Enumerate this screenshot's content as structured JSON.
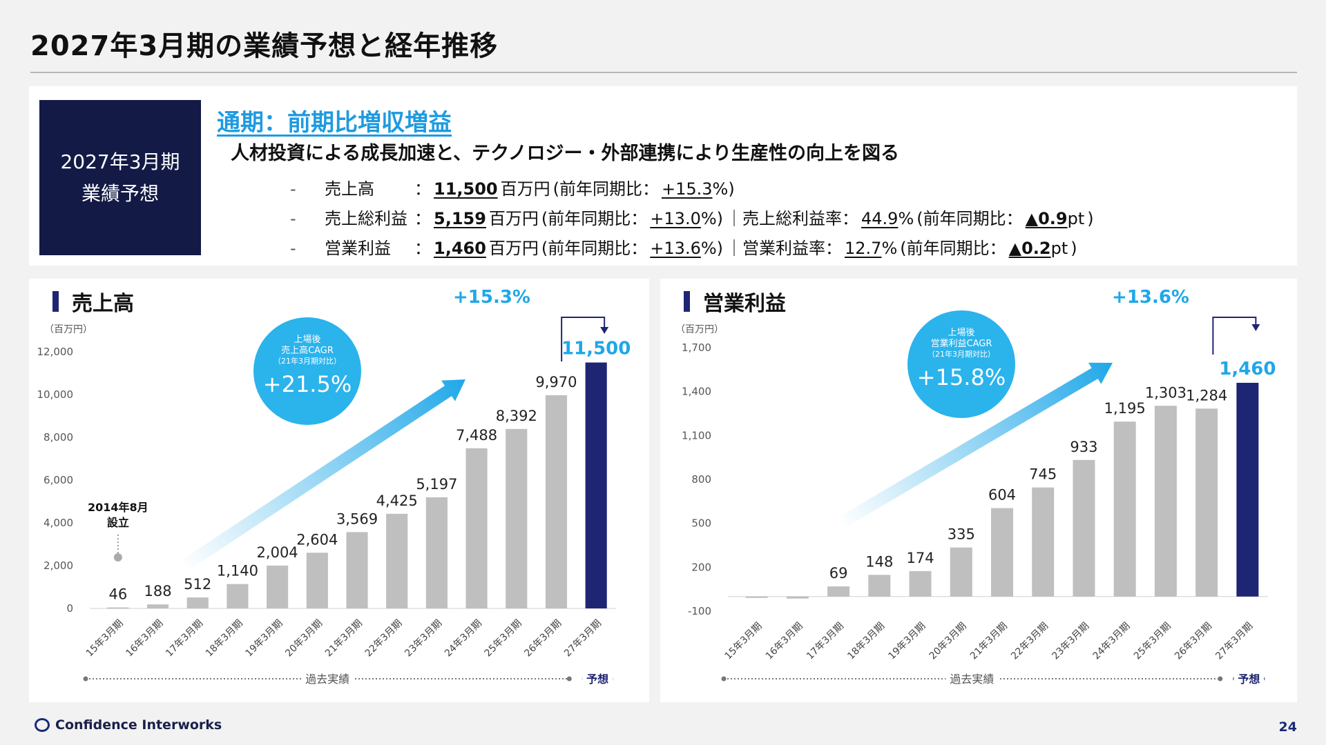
{
  "page": {
    "title": "2027年3月期の業績予想と経年推移",
    "page_number": "24",
    "company": "Confidence Interworks"
  },
  "summary": {
    "badge_line1": "2027年3月期",
    "badge_line2": "業績予想",
    "headline": "通期：前期比増収増益",
    "subline": "人材投資による成長加速と、テクノロジー・外部連携により生産性の向上を図る",
    "rows": [
      {
        "dash": "-",
        "label": "売上高",
        "colon": "：",
        "value": "11,500",
        "unit": "百万円",
        "p1": "(前年同期比：",
        "yoy": "+15.3",
        "p2": "%)"
      },
      {
        "dash": "-",
        "label": "売上総利益",
        "colon": "：",
        "value": "5,159",
        "unit": "百万円",
        "p1": "(前年同期比：",
        "yoy": "+13.0",
        "p2": "%)",
        "sep": "｜売上総利益率：",
        "rate": "44.9",
        "rate_unit": "%",
        "p3": "(前年同期比：",
        "delta": "▲0.9",
        "delta_unit": "pt",
        "p4": ")"
      },
      {
        "dash": "-",
        "label": "営業利益",
        "colon": "：",
        "value": "1,460",
        "unit": "百万円",
        "p1": "(前年同期比：",
        "yoy": "+13.6",
        "p2": "%)",
        "sep": "｜営業利益率：",
        "rate": "12.7",
        "rate_unit": "%",
        "p3": "(前年同期比：",
        "delta": "▲0.2",
        "delta_unit": "pt",
        "p4": ")"
      }
    ]
  },
  "colors": {
    "navy": "#1e2572",
    "gray_bar": "#bfbfbf",
    "accent": "#1fa7e8",
    "bubble": "#2bb3ec"
  },
  "chart_data": [
    {
      "type": "bar",
      "title": "売上高",
      "unit_label": "（百万円）",
      "categories": [
        "15年3月期",
        "16年3月期",
        "17年3月期",
        "18年3月期",
        "19年3月期",
        "20年3月期",
        "21年3月期",
        "22年3月期",
        "23年3月期",
        "24年3月期",
        "25年3月期",
        "26年3月期",
        "27年3月期"
      ],
      "values": [
        46,
        188,
        512,
        1140,
        2004,
        2604,
        3569,
        4425,
        5197,
        7488,
        8392,
        9970,
        11500
      ],
      "value_labels": [
        "46",
        "188",
        "512",
        "1,140",
        "2,004",
        "2,604",
        "3,569",
        "4,425",
        "5,197",
        "7,488",
        "8,392",
        "9,970",
        "11,500"
      ],
      "forecast_index": 12,
      "ylim": [
        0,
        12000
      ],
      "yticks": [
        0,
        2000,
        4000,
        6000,
        8000,
        10000,
        12000
      ],
      "ytick_labels": [
        "0",
        "2,000",
        "4,000",
        "6,000",
        "8,000",
        "10,000",
        "12,000"
      ],
      "growth_badge": "+15.3%",
      "cagr": {
        "line1": "上場後",
        "line2": "売上高CAGR",
        "line3": "（21年3月期対比）",
        "value": "+21.5%"
      },
      "annotation": {
        "line1": "2014年8月",
        "line2": "設立"
      },
      "past_label": "過去実績",
      "forecast_label": "予想"
    },
    {
      "type": "bar",
      "title": "営業利益",
      "unit_label": "（百万円）",
      "categories": [
        "15年3月期",
        "16年3月期",
        "17年3月期",
        "18年3月期",
        "19年3月期",
        "20年3月期",
        "21年3月期",
        "22年3月期",
        "23年3月期",
        "24年3月期",
        "25年3月期",
        "26年3月期",
        "27年3月期"
      ],
      "values": [
        -8,
        -14,
        69,
        148,
        174,
        335,
        604,
        745,
        933,
        1195,
        1303,
        1284,
        1460
      ],
      "value_labels": [
        "",
        "",
        "69",
        "148",
        "174",
        "335",
        "604",
        "745",
        "933",
        "1,195",
        "1,303",
        "1,284",
        "1,460"
      ],
      "forecast_index": 12,
      "ylim": [
        -100,
        1700
      ],
      "yticks": [
        -100,
        200,
        500,
        800,
        1100,
        1400,
        1700
      ],
      "ytick_labels": [
        "-100",
        "200",
        "500",
        "800",
        "1,100",
        "1,400",
        "1,700"
      ],
      "growth_badge": "+13.6%",
      "cagr": {
        "line1": "上場後",
        "line2": "営業利益CAGR",
        "line3": "（21年3月期対比）",
        "value": "+15.8%"
      },
      "past_label": "過去実績",
      "forecast_label": "予想"
    }
  ]
}
